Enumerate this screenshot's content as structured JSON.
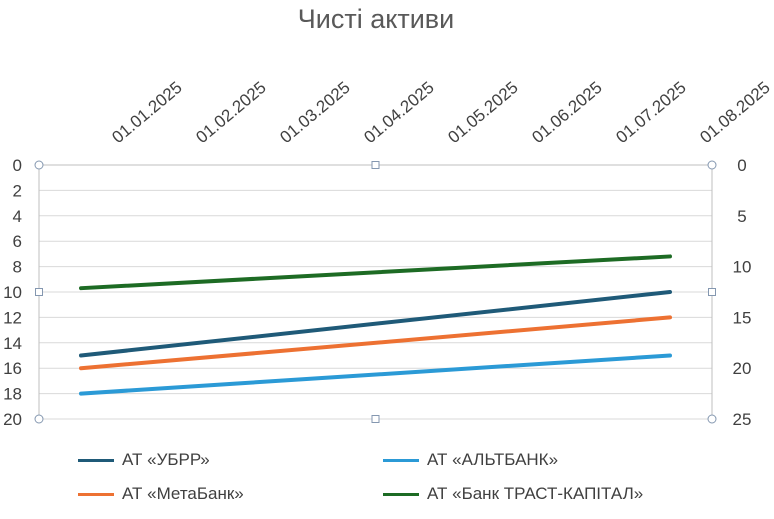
{
  "chart_data": {
    "type": "line",
    "title": "Чисті активи",
    "x_tick_labels": [
      "01.01.2025",
      "01.02.2025",
      "01.03.2025",
      "01.04.2025",
      "01.05.2025",
      "01.06.2025",
      "01.07.2025",
      "01.08.2025"
    ],
    "y_left": {
      "ylim": [
        0,
        20
      ],
      "reversed": true,
      "ticks": [
        "0",
        "2",
        "4",
        "6",
        "8",
        "10",
        "12",
        "14",
        "16",
        "18",
        "20"
      ]
    },
    "y_right": {
      "ylim": [
        0,
        25
      ],
      "reversed": true,
      "ticks": [
        "0",
        "5",
        "10",
        "15",
        "20",
        "25"
      ]
    },
    "grid": "horizontal",
    "legend_position": "bottom",
    "series": [
      {
        "name": "АТ «УБРР»",
        "color": "#1f5a78",
        "x": [
          "01.01.2025",
          "01.08.2025"
        ],
        "values": [
          15,
          10
        ]
      },
      {
        "name": "АТ «АЛЬТБАНК»",
        "color": "#2b9ad6",
        "x": [
          "01.01.2025",
          "01.08.2025"
        ],
        "values": [
          18,
          15
        ]
      },
      {
        "name": "АТ «МетаБанк»",
        "color": "#ed7132",
        "x": [
          "01.01.2025",
          "01.08.2025"
        ],
        "values": [
          16,
          12
        ]
      },
      {
        "name": "АТ «Банк ТРАСТ-КАПІТАЛ»",
        "color": "#1d6b24",
        "x": [
          "01.01.2025",
          "01.08.2025"
        ],
        "values": [
          9.7,
          7.2
        ]
      }
    ]
  }
}
